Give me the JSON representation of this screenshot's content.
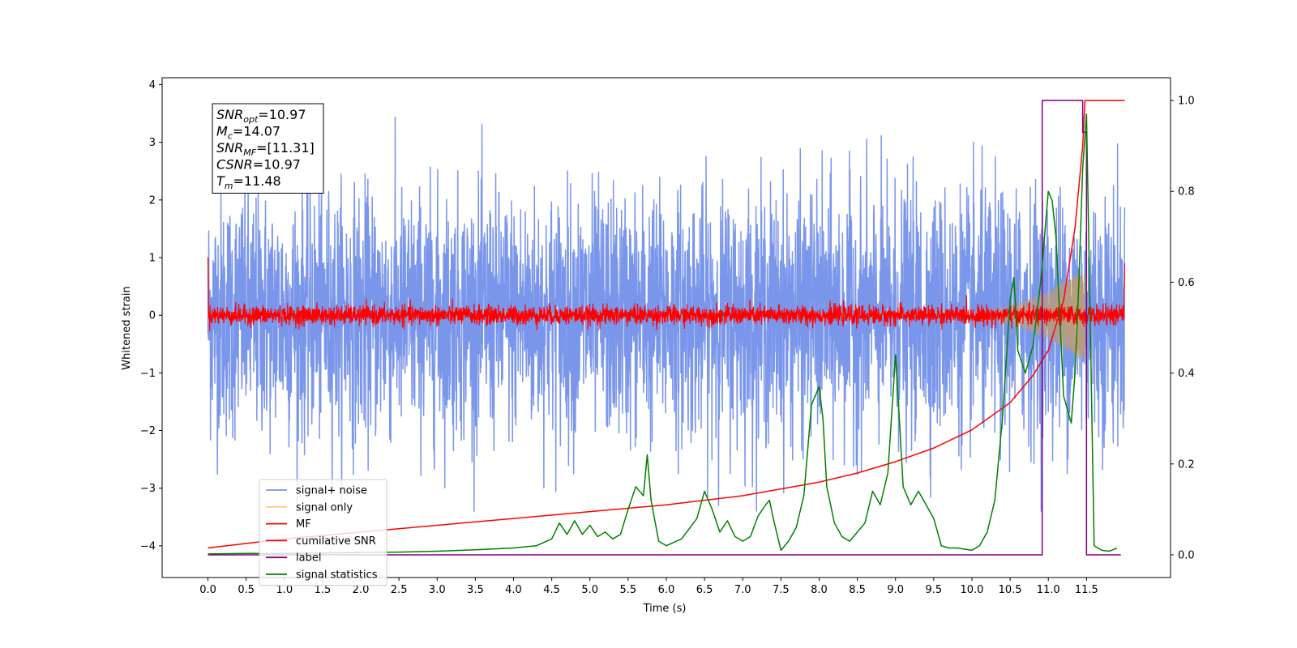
{
  "chart_data": {
    "type": "line",
    "xlabel": "Time (s)",
    "ylabel": "Whitened strain",
    "ylabel_right": "",
    "xlim": [
      -0.6,
      12.6
    ],
    "ylim": [
      -4.55,
      4.12
    ],
    "ylim_right": [
      -0.05,
      1.05
    ],
    "x_ticks": [
      0.0,
      0.5,
      1.0,
      1.5,
      2.0,
      2.5,
      3.0,
      3.5,
      4.0,
      4.5,
      5.0,
      5.5,
      6.0,
      6.5,
      7.0,
      7.5,
      8.0,
      8.5,
      9.0,
      9.5,
      10.0,
      10.5,
      11.0,
      11.5
    ],
    "y_ticks": [
      -4,
      -3,
      -2,
      -1,
      0,
      1,
      2,
      3,
      4
    ],
    "y_ticks_right": [
      0.0,
      0.2,
      0.4,
      0.6,
      0.8,
      1.0
    ],
    "grid": false,
    "legend_placement": "lower-left",
    "info_box": {
      "placement": "top-left",
      "lines": [
        {
          "main": "SNR",
          "sub": "opt",
          "value": "=10.97"
        },
        {
          "main": "M",
          "sub": "c",
          "value": "=14.07"
        },
        {
          "main": "SNR",
          "sub": "MF",
          "value": "=[11.31]"
        },
        {
          "main": "CSNR",
          "sub": "",
          "value": "=10.97"
        },
        {
          "main": "T",
          "sub": "m",
          "value": "=11.48"
        }
      ]
    },
    "series": [
      {
        "name": "signal+ noise",
        "axis": "left",
        "color": "#4169e1",
        "opacity": 0.7,
        "kind": "noise",
        "x_range": [
          0.0,
          12.0
        ],
        "amplitude_sigma": 1.0,
        "approx_envelope": [
          -3.0,
          3.7
        ]
      },
      {
        "name": "signal only",
        "axis": "left",
        "color": "#ffa500",
        "opacity": 0.45,
        "kind": "chirp",
        "x_range": [
          0.0,
          11.48
        ],
        "envelope": {
          "x": [
            10.0,
            10.5,
            11.0,
            11.3,
            11.48
          ],
          "amp": [
            0.05,
            0.15,
            0.4,
            0.65,
            0.75
          ]
        }
      },
      {
        "name": "MF",
        "axis": "left",
        "color": "#ff0000",
        "kind": "noise",
        "x_range": [
          0.0,
          12.0
        ],
        "amplitude_sigma": 0.08,
        "start_spike": 1.0,
        "end_value": 0.9
      },
      {
        "name": "cumilative SNR",
        "axis": "right",
        "color": "#ff0000",
        "x": [
          0.0,
          1.0,
          2.0,
          3.0,
          4.0,
          5.0,
          6.0,
          7.0,
          8.0,
          8.5,
          9.0,
          9.5,
          10.0,
          10.5,
          10.8,
          11.0,
          11.2,
          11.35,
          11.45,
          11.48,
          11.5,
          12.0
        ],
        "values": [
          0.015,
          0.035,
          0.05,
          0.065,
          0.08,
          0.095,
          0.11,
          0.13,
          0.16,
          0.18,
          0.205,
          0.235,
          0.275,
          0.335,
          0.395,
          0.45,
          0.56,
          0.72,
          0.9,
          1.0,
          1.0,
          1.0
        ]
      },
      {
        "name": "label",
        "axis": "right",
        "color": "#800080",
        "x": [
          0.0,
          10.92,
          10.92,
          11.45,
          11.45,
          11.5,
          11.5,
          11.95
        ],
        "values": [
          0.0,
          0.0,
          1.0,
          1.0,
          0.93,
          0.93,
          0.0,
          0.0
        ]
      },
      {
        "name": "signal statistics",
        "axis": "right",
        "color": "#008000",
        "x": [
          0.0,
          0.5,
          1.0,
          1.5,
          2.0,
          2.5,
          3.0,
          3.5,
          4.0,
          4.3,
          4.5,
          4.6,
          4.7,
          4.8,
          4.9,
          5.0,
          5.1,
          5.2,
          5.3,
          5.4,
          5.5,
          5.6,
          5.7,
          5.75,
          5.8,
          5.9,
          6.0,
          6.2,
          6.4,
          6.5,
          6.6,
          6.7,
          6.8,
          6.9,
          7.0,
          7.1,
          7.2,
          7.3,
          7.35,
          7.4,
          7.5,
          7.6,
          7.7,
          7.8,
          7.9,
          8.0,
          8.05,
          8.1,
          8.2,
          8.3,
          8.4,
          8.5,
          8.6,
          8.7,
          8.8,
          8.9,
          9.0,
          9.05,
          9.1,
          9.2,
          9.3,
          9.4,
          9.5,
          9.6,
          9.7,
          9.8,
          10.0,
          10.1,
          10.2,
          10.3,
          10.4,
          10.5,
          10.55,
          10.6,
          10.7,
          10.8,
          10.9,
          11.0,
          11.05,
          11.1,
          11.2,
          11.3,
          11.35,
          11.4,
          11.45,
          11.5,
          11.55,
          11.6,
          11.7,
          11.8,
          11.9
        ],
        "values": [
          0.002,
          0.003,
          0.003,
          0.004,
          0.005,
          0.006,
          0.008,
          0.011,
          0.015,
          0.02,
          0.035,
          0.07,
          0.045,
          0.075,
          0.045,
          0.065,
          0.04,
          0.05,
          0.035,
          0.045,
          0.1,
          0.15,
          0.13,
          0.22,
          0.12,
          0.03,
          0.02,
          0.035,
          0.08,
          0.14,
          0.1,
          0.05,
          0.075,
          0.04,
          0.03,
          0.04,
          0.085,
          0.11,
          0.12,
          0.08,
          0.01,
          0.03,
          0.06,
          0.13,
          0.33,
          0.37,
          0.3,
          0.15,
          0.07,
          0.04,
          0.03,
          0.05,
          0.07,
          0.14,
          0.11,
          0.18,
          0.44,
          0.3,
          0.15,
          0.11,
          0.14,
          0.11,
          0.08,
          0.02,
          0.015,
          0.015,
          0.01,
          0.02,
          0.05,
          0.12,
          0.3,
          0.56,
          0.61,
          0.45,
          0.4,
          0.46,
          0.6,
          0.8,
          0.78,
          0.7,
          0.35,
          0.29,
          0.4,
          0.6,
          0.85,
          0.97,
          0.5,
          0.02,
          0.01,
          0.008,
          0.015
        ]
      }
    ]
  }
}
